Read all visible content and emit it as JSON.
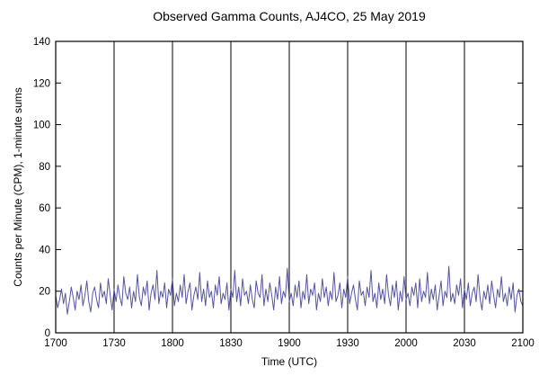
{
  "chart_data": {
    "type": "line",
    "title": "Observed Gamma Counts, AJ4CO, 25 May 2019",
    "xlabel": "Time (UTC)",
    "ylabel": "Counts per Minute (CPM), 1-minute sums",
    "x_tick_labels": [
      "1700",
      "1730",
      "1800",
      "1830",
      "1900",
      "1930",
      "2000",
      "2030",
      "2100"
    ],
    "y_ticks": [
      0,
      20,
      40,
      60,
      80,
      100,
      120,
      140
    ],
    "ylim": [
      0,
      140
    ],
    "grid": "vertical-only",
    "legend": "none",
    "line_color": "#5454a2",
    "axis_color": "#000000",
    "sample_interval_minutes": 1,
    "values": [
      18,
      12,
      16,
      21,
      14,
      19,
      9,
      15,
      22,
      17,
      11,
      20,
      16,
      23,
      13,
      18,
      25,
      15,
      10,
      19,
      22,
      16,
      12,
      24,
      17,
      20,
      14,
      26,
      18,
      11,
      21,
      15,
      23,
      17,
      13,
      27,
      19,
      16,
      22,
      12,
      20,
      15,
      28,
      17,
      13,
      22,
      18,
      25,
      11,
      19,
      23,
      16,
      30,
      14,
      20,
      17,
      24,
      12,
      21,
      18,
      26,
      13,
      19,
      15,
      23,
      17,
      28,
      14,
      20,
      24,
      11,
      18,
      22,
      16,
      29,
      15,
      21,
      13,
      25,
      17,
      20,
      12,
      23,
      18,
      27,
      14,
      19,
      16,
      24,
      11,
      21,
      17,
      30,
      15,
      22,
      13,
      26,
      18,
      20,
      14,
      23,
      16,
      12,
      25,
      19,
      17,
      28,
      13,
      21,
      15,
      24,
      18,
      11,
      22,
      16,
      27,
      14,
      20,
      17,
      31,
      15,
      19,
      13,
      23,
      17,
      25,
      12,
      20,
      16,
      28,
      14,
      21,
      18,
      24,
      11,
      19,
      15,
      26,
      17,
      22,
      13,
      20,
      16,
      29,
      15,
      18,
      24,
      12,
      21,
      17,
      27,
      14,
      19,
      23,
      16,
      11,
      25,
      18,
      20,
      13,
      22,
      17,
      30,
      15,
      19,
      12,
      24,
      16,
      21,
      14,
      28,
      18,
      13,
      23,
      17,
      25,
      11,
      20,
      15,
      27,
      16,
      19,
      13,
      22,
      18,
      24,
      12,
      26,
      15,
      20,
      17,
      29,
      14,
      21,
      16,
      23,
      11,
      18,
      25,
      13,
      20,
      17,
      32,
      15,
      19,
      14,
      23,
      18,
      26,
      12,
      21,
      16,
      24,
      13,
      19,
      22,
      15,
      28,
      17,
      11,
      20,
      16,
      23,
      14,
      25,
      18,
      12,
      21,
      17,
      27,
      15,
      19,
      13,
      22,
      16,
      24,
      10,
      18,
      21,
      15,
      13
    ]
  }
}
